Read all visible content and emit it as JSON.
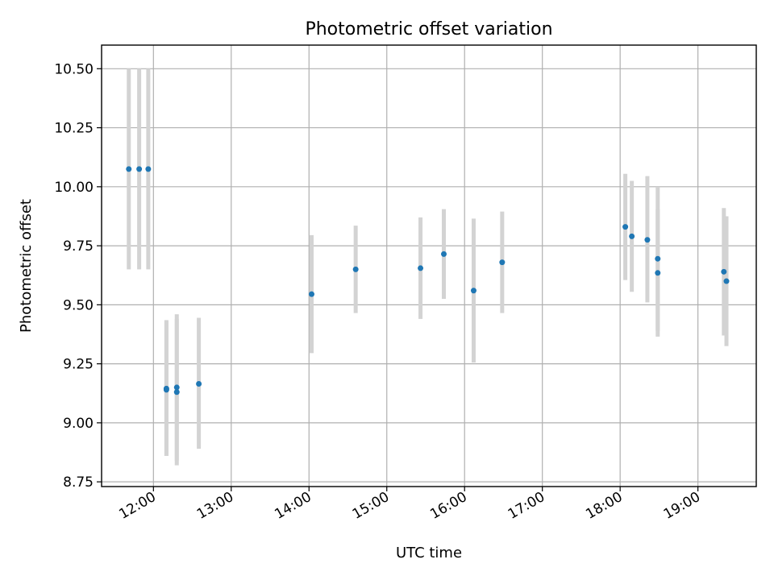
{
  "chart_data": {
    "type": "scatter",
    "title": "Photometric offset variation",
    "xlabel": "UTC time",
    "ylabel": "Photometric offset",
    "x_axis": {
      "kind": "time",
      "range": [
        "11:20",
        "19:45"
      ],
      "ticks": [
        "12:00",
        "13:00",
        "14:00",
        "15:00",
        "16:00",
        "17:00",
        "18:00",
        "19:00"
      ]
    },
    "y_axis": {
      "range": [
        8.73,
        10.6
      ],
      "ticks": [
        "8.75",
        "9.00",
        "9.25",
        "9.50",
        "9.75",
        "10.00",
        "10.25",
        "10.50"
      ]
    },
    "grid": true,
    "series": [
      {
        "marker_color": "#1f77b4",
        "errorbar_color": "#d3d3d3",
        "points": [
          {
            "time": "11:41",
            "y": 10.075,
            "ylow": 9.65,
            "yhigh": 10.5
          },
          {
            "time": "11:49",
            "y": 10.075,
            "ylow": 9.65,
            "yhigh": 10.5
          },
          {
            "time": "11:56",
            "y": 10.075,
            "ylow": 9.65,
            "yhigh": 10.5
          },
          {
            "time": "12:10",
            "y": 9.145,
            "ylow": 8.86,
            "yhigh": 9.435
          },
          {
            "time": "12:10",
            "y": 9.14,
            "ylow": 8.86,
            "yhigh": 9.43
          },
          {
            "time": "12:18",
            "y": 9.15,
            "ylow": 8.84,
            "yhigh": 9.46
          },
          {
            "time": "12:18",
            "y": 9.13,
            "ylow": 8.82,
            "yhigh": 9.44
          },
          {
            "time": "12:35",
            "y": 9.165,
            "ylow": 8.89,
            "yhigh": 9.445
          },
          {
            "time": "14:02",
            "y": 9.545,
            "ylow": 9.295,
            "yhigh": 9.795
          },
          {
            "time": "14:36",
            "y": 9.65,
            "ylow": 9.465,
            "yhigh": 9.835
          },
          {
            "time": "15:26",
            "y": 9.655,
            "ylow": 9.44,
            "yhigh": 9.87
          },
          {
            "time": "15:44",
            "y": 9.715,
            "ylow": 9.525,
            "yhigh": 9.905
          },
          {
            "time": "16:07",
            "y": 9.56,
            "ylow": 9.255,
            "yhigh": 9.865
          },
          {
            "time": "16:29",
            "y": 9.68,
            "ylow": 9.465,
            "yhigh": 9.895
          },
          {
            "time": "18:04",
            "y": 9.83,
            "ylow": 9.605,
            "yhigh": 10.055
          },
          {
            "time": "18:09",
            "y": 9.79,
            "ylow": 9.555,
            "yhigh": 10.025
          },
          {
            "time": "18:21",
            "y": 9.775,
            "ylow": 9.51,
            "yhigh": 10.045
          },
          {
            "time": "18:29",
            "y": 9.695,
            "ylow": 9.39,
            "yhigh": 10.0
          },
          {
            "time": "18:29",
            "y": 9.635,
            "ylow": 9.365,
            "yhigh": 9.905
          },
          {
            "time": "19:20",
            "y": 9.64,
            "ylow": 9.37,
            "yhigh": 9.91
          },
          {
            "time": "19:22",
            "y": 9.6,
            "ylow": 9.325,
            "yhigh": 9.875
          }
        ]
      }
    ]
  }
}
